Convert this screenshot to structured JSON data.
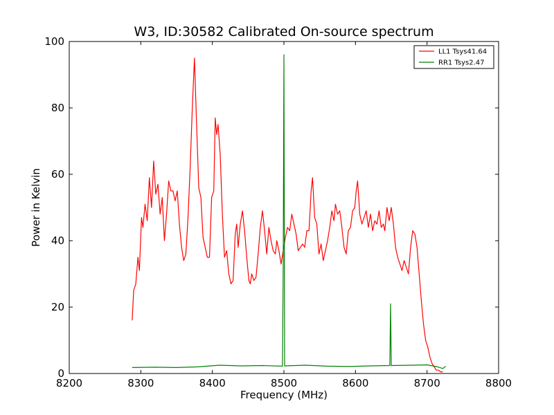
{
  "chart_data": {
    "type": "line",
    "title": "W3, ID:30582 Calibrated On-source spectrum",
    "xlabel": "Frequency (MHz)",
    "ylabel": "Power in Kelvin",
    "xlim": [
      8200,
      8800
    ],
    "ylim": [
      0,
      100
    ],
    "xticks": [
      "8200",
      "8300",
      "8400",
      "8500",
      "8600",
      "8700",
      "8800"
    ],
    "yticks": [
      "0",
      "20",
      "40",
      "60",
      "80",
      "100"
    ],
    "grid": false,
    "legend_position": "top-right",
    "series": [
      {
        "name": "LL1 Tsys41.64",
        "color": "#ff0000",
        "points": [
          [
            8288,
            16
          ],
          [
            8290,
            25
          ],
          [
            8293,
            27
          ],
          [
            8296,
            35
          ],
          [
            8298,
            31
          ],
          [
            8301,
            47
          ],
          [
            8303,
            44
          ],
          [
            8306,
            51
          ],
          [
            8309,
            46
          ],
          [
            8312,
            59
          ],
          [
            8315,
            50
          ],
          [
            8318,
            64
          ],
          [
            8321,
            54
          ],
          [
            8324,
            57
          ],
          [
            8327,
            48
          ],
          [
            8330,
            53
          ],
          [
            8333,
            40
          ],
          [
            8336,
            48
          ],
          [
            8339,
            58
          ],
          [
            8342,
            55
          ],
          [
            8345,
            55
          ],
          [
            8348,
            52
          ],
          [
            8351,
            55
          ],
          [
            8354,
            45
          ],
          [
            8357,
            38
          ],
          [
            8360,
            34
          ],
          [
            8363,
            36
          ],
          [
            8366,
            47
          ],
          [
            8369,
            62
          ],
          [
            8372,
            80
          ],
          [
            8375,
            95
          ],
          [
            8378,
            75
          ],
          [
            8381,
            56
          ],
          [
            8384,
            53
          ],
          [
            8387,
            41
          ],
          [
            8390,
            38
          ],
          [
            8393,
            35
          ],
          [
            8396,
            35
          ],
          [
            8399,
            53
          ],
          [
            8402,
            55
          ],
          [
            8404,
            77
          ],
          [
            8406,
            72
          ],
          [
            8408,
            75
          ],
          [
            8411,
            66
          ],
          [
            8414,
            48
          ],
          [
            8417,
            35
          ],
          [
            8420,
            37
          ],
          [
            8423,
            30
          ],
          [
            8426,
            27
          ],
          [
            8429,
            28
          ],
          [
            8432,
            42
          ],
          [
            8434,
            45
          ],
          [
            8436,
            38
          ],
          [
            8439,
            45
          ],
          [
            8442,
            49
          ],
          [
            8445,
            43
          ],
          [
            8448,
            35
          ],
          [
            8451,
            28
          ],
          [
            8453,
            27
          ],
          [
            8455,
            30
          ],
          [
            8458,
            28
          ],
          [
            8461,
            29
          ],
          [
            8464,
            36
          ],
          [
            8467,
            44
          ],
          [
            8470,
            49
          ],
          [
            8473,
            43
          ],
          [
            8476,
            36
          ],
          [
            8479,
            44
          ],
          [
            8482,
            40
          ],
          [
            8485,
            37
          ],
          [
            8488,
            36
          ],
          [
            8490,
            40
          ],
          [
            8493,
            37
          ],
          [
            8496,
            33
          ],
          [
            8499,
            37
          ],
          [
            8502,
            41
          ],
          [
            8505,
            44
          ],
          [
            8508,
            43
          ],
          [
            8511,
            48
          ],
          [
            8514,
            45
          ],
          [
            8517,
            42
          ],
          [
            8520,
            37
          ],
          [
            8523,
            38
          ],
          [
            8526,
            39
          ],
          [
            8529,
            38
          ],
          [
            8532,
            43
          ],
          [
            8535,
            43
          ],
          [
            8538,
            55
          ],
          [
            8540,
            59
          ],
          [
            8543,
            47
          ],
          [
            8546,
            45
          ],
          [
            8549,
            36
          ],
          [
            8552,
            39
          ],
          [
            8555,
            34
          ],
          [
            8558,
            37
          ],
          [
            8561,
            40
          ],
          [
            8564,
            44
          ],
          [
            8567,
            49
          ],
          [
            8570,
            46
          ],
          [
            8572,
            51
          ],
          [
            8575,
            48
          ],
          [
            8578,
            49
          ],
          [
            8581,
            44
          ],
          [
            8584,
            38
          ],
          [
            8587,
            36
          ],
          [
            8590,
            43
          ],
          [
            8593,
            44
          ],
          [
            8596,
            49
          ],
          [
            8599,
            50
          ],
          [
            8601,
            55
          ],
          [
            8603,
            58
          ],
          [
            8606,
            48
          ],
          [
            8609,
            45
          ],
          [
            8612,
            47
          ],
          [
            8615,
            49
          ],
          [
            8618,
            44
          ],
          [
            8621,
            48
          ],
          [
            8624,
            43
          ],
          [
            8627,
            46
          ],
          [
            8630,
            45
          ],
          [
            8633,
            49
          ],
          [
            8636,
            44
          ],
          [
            8639,
            45
          ],
          [
            8641,
            43
          ],
          [
            8644,
            50
          ],
          [
            8647,
            46
          ],
          [
            8650,
            50
          ],
          [
            8653,
            45
          ],
          [
            8656,
            38
          ],
          [
            8659,
            35
          ],
          [
            8662,
            33
          ],
          [
            8665,
            31
          ],
          [
            8668,
            34
          ],
          [
            8671,
            32
          ],
          [
            8674,
            30
          ],
          [
            8677,
            38
          ],
          [
            8680,
            43
          ],
          [
            8683,
            42
          ],
          [
            8686,
            38
          ],
          [
            8689,
            30
          ],
          [
            8692,
            22
          ],
          [
            8695,
            15
          ],
          [
            8698,
            10
          ],
          [
            8701,
            8
          ],
          [
            8704,
            5
          ],
          [
            8707,
            3
          ],
          [
            8710,
            2
          ],
          [
            8713,
            1
          ],
          [
            8716,
            1
          ],
          [
            8719,
            0.5
          ],
          [
            8722,
            0.5
          ]
        ]
      },
      {
        "name": "RR1 Tsys2.47",
        "color": "#008000",
        "points": [
          [
            8288,
            1.8
          ],
          [
            8320,
            1.9
          ],
          [
            8350,
            1.8
          ],
          [
            8380,
            2.0
          ],
          [
            8410,
            2.5
          ],
          [
            8440,
            2.3
          ],
          [
            8470,
            2.4
          ],
          [
            8498,
            2.2
          ],
          [
            8499,
            33
          ],
          [
            8500,
            96
          ],
          [
            8501,
            2.3
          ],
          [
            8530,
            2.5
          ],
          [
            8560,
            2.2
          ],
          [
            8590,
            2.1
          ],
          [
            8620,
            2.3
          ],
          [
            8648,
            2.4
          ],
          [
            8649,
            21
          ],
          [
            8650,
            2.4
          ],
          [
            8680,
            2.5
          ],
          [
            8700,
            2.6
          ],
          [
            8715,
            2.0
          ],
          [
            8722,
            1.5
          ],
          [
            8726,
            2.2
          ]
        ]
      }
    ]
  }
}
